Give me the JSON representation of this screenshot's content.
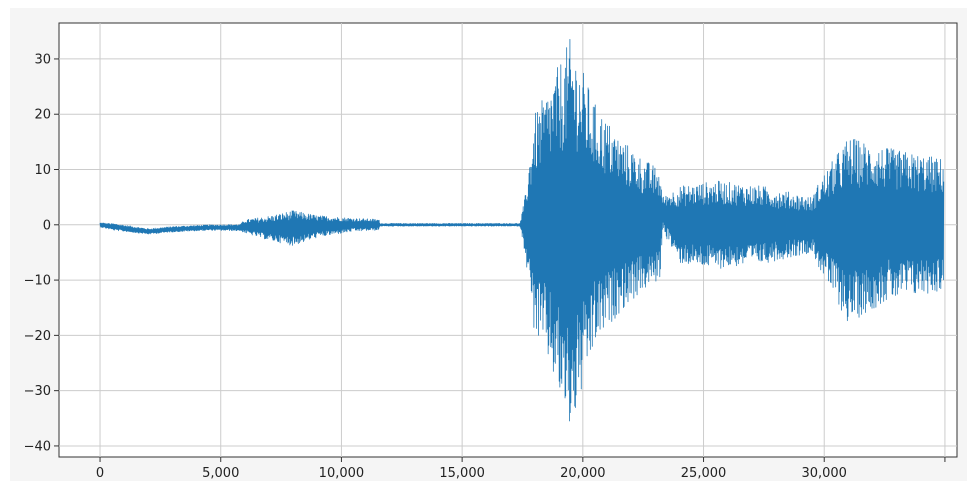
{
  "chart_data": {
    "type": "line",
    "title": "",
    "xlabel": "",
    "ylabel": "",
    "xlim": [
      -1700,
      35500
    ],
    "ylim": [
      -42,
      36.5
    ],
    "x_ticks": [
      {
        "value": 0,
        "label": "0"
      },
      {
        "value": 5000,
        "label": "5,000"
      },
      {
        "value": 10000,
        "label": "10,000"
      },
      {
        "value": 15000,
        "label": "15,000"
      },
      {
        "value": 20000,
        "label": "20,000"
      },
      {
        "value": 25000,
        "label": "25,000"
      },
      {
        "value": 30000,
        "label": "30,000"
      },
      {
        "value": 35000,
        "label": ""
      }
    ],
    "y_ticks": [
      {
        "value": 30,
        "label": "30"
      },
      {
        "value": 20,
        "label": "20"
      },
      {
        "value": 10,
        "label": "10"
      },
      {
        "value": 0,
        "label": "0"
      },
      {
        "value": -10,
        "label": "−10"
      },
      {
        "value": -20,
        "label": "−20"
      },
      {
        "value": -30,
        "label": "−30"
      },
      {
        "value": -40,
        "label": "−40"
      }
    ],
    "grid": true,
    "legend": "none",
    "series_color": "#1f77b4",
    "series": [
      {
        "x_start": 0,
        "x_end": 34950,
        "envelope": [
          {
            "x": 0,
            "amp": 0.4,
            "offset": 0
          },
          {
            "x": 600,
            "amp": 0.6,
            "offset": -0.4
          },
          {
            "x": 2000,
            "amp": 0.5,
            "offset": -1.2
          },
          {
            "x": 3000,
            "amp": 0.5,
            "offset": -0.8
          },
          {
            "x": 4500,
            "amp": 0.5,
            "offset": -0.5
          },
          {
            "x": 5800,
            "amp": 0.6,
            "offset": -0.5
          },
          {
            "x": 6000,
            "amp": 1.2,
            "offset": -0.3
          },
          {
            "x": 7000,
            "amp": 2.2,
            "offset": -0.6
          },
          {
            "x": 8000,
            "amp": 3.2,
            "offset": -0.6
          },
          {
            "x": 9000,
            "amp": 2.0,
            "offset": -0.3
          },
          {
            "x": 10500,
            "amp": 1.2,
            "offset": 0
          },
          {
            "x": 11550,
            "amp": 1.0,
            "offset": 0
          },
          {
            "x": 11600,
            "amp": 0.25,
            "offset": 0
          },
          {
            "x": 17400,
            "amp": 0.25,
            "offset": 0
          },
          {
            "x": 17600,
            "amp": 5,
            "offset": 0
          },
          {
            "x": 18000,
            "amp": 20,
            "offset": 0
          },
          {
            "x": 18500,
            "amp": 24,
            "offset": 0
          },
          {
            "x": 19500,
            "amp": 36,
            "offset": -2
          },
          {
            "x": 20500,
            "amp": 22,
            "offset": 0
          },
          {
            "x": 21500,
            "amp": 16,
            "offset": 0
          },
          {
            "x": 22500,
            "amp": 12,
            "offset": 0
          },
          {
            "x": 23200,
            "amp": 10,
            "offset": 0
          },
          {
            "x": 23300,
            "amp": 3,
            "offset": 2
          },
          {
            "x": 24000,
            "amp": 7,
            "offset": 0
          },
          {
            "x": 25500,
            "amp": 8,
            "offset": 0
          },
          {
            "x": 27500,
            "amp": 7,
            "offset": 0
          },
          {
            "x": 29500,
            "amp": 5,
            "offset": 0
          },
          {
            "x": 29800,
            "amp": 8,
            "offset": 0
          },
          {
            "x": 31000,
            "amp": 17,
            "offset": -1
          },
          {
            "x": 32500,
            "amp": 14,
            "offset": 0
          },
          {
            "x": 34950,
            "amp": 12,
            "offset": 0
          }
        ]
      }
    ]
  }
}
